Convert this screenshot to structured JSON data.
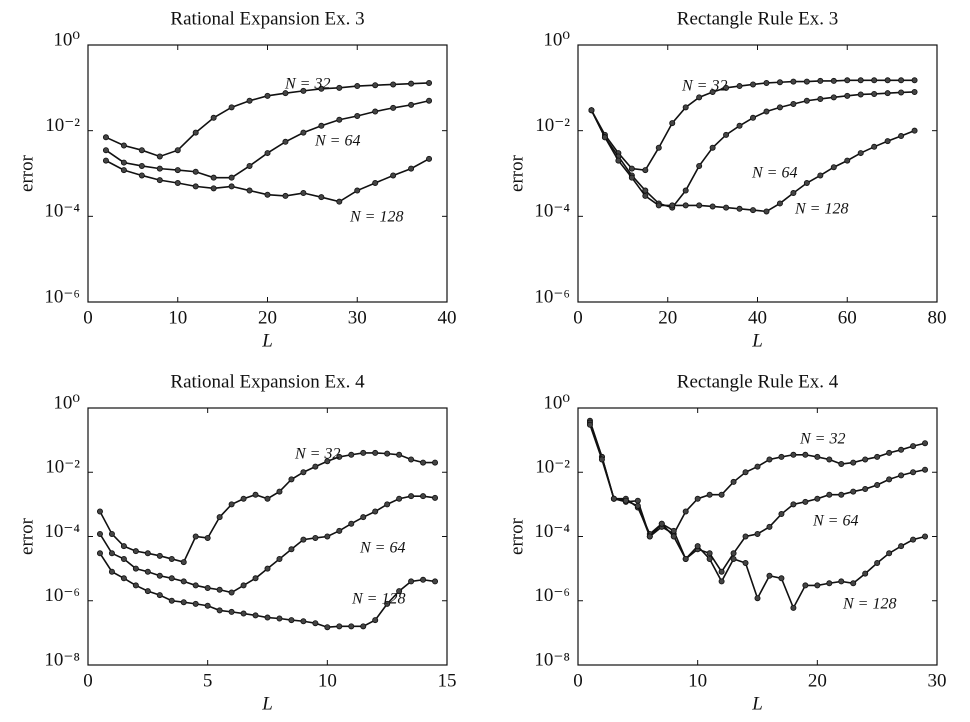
{
  "chart_data": [
    {
      "type": "line",
      "title": "Rational Expansion  Ex. 3",
      "xlabel": "L",
      "ylabel": "error",
      "yscale": "log",
      "xlim": [
        0,
        40
      ],
      "xticks": [
        0,
        10,
        20,
        30,
        40
      ],
      "ylim": [
        1e-06,
        1
      ],
      "yticks": [
        {
          "value": 1,
          "label": "10⁰"
        },
        {
          "value": 0.01,
          "label": "10⁻²"
        },
        {
          "value": 0.0001,
          "label": "10⁻⁴"
        },
        {
          "value": 1e-06,
          "label": "10⁻⁶"
        }
      ],
      "x": [
        2,
        4,
        6,
        8,
        10,
        12,
        14,
        16,
        18,
        20,
        22,
        24,
        26,
        28,
        30,
        32,
        34,
        36,
        38
      ],
      "series": [
        {
          "name": "N = 32",
          "color": "#111111",
          "values": [
            0.007,
            0.0045,
            0.0035,
            0.0025,
            0.0035,
            0.009,
            0.02,
            0.035,
            0.05,
            0.065,
            0.075,
            0.085,
            0.095,
            0.1,
            0.11,
            0.115,
            0.12,
            0.125,
            0.13
          ]
        },
        {
          "name": "N = 64",
          "color": "#111111",
          "values": [
            0.0035,
            0.0018,
            0.0015,
            0.0013,
            0.0012,
            0.0011,
            0.0008,
            0.0008,
            0.0015,
            0.003,
            0.0055,
            0.009,
            0.013,
            0.018,
            0.022,
            0.028,
            0.034,
            0.04,
            0.05
          ]
        },
        {
          "name": "N = 128",
          "color": "#111111",
          "values": [
            0.002,
            0.0012,
            0.0009,
            0.0007,
            0.0006,
            0.0005,
            0.00045,
            0.0005,
            0.0004,
            0.00032,
            0.0003,
            0.00035,
            0.00028,
            0.00022,
            0.0004,
            0.0006,
            0.0009,
            0.0013,
            0.0022
          ]
        }
      ]
    },
    {
      "type": "line",
      "title": "Rectangle Rule Ex. 3",
      "xlabel": "L",
      "ylabel": "error",
      "yscale": "log",
      "xlim": [
        0,
        80
      ],
      "xticks": [
        0,
        20,
        40,
        60,
        80
      ],
      "ylim": [
        1e-06,
        1
      ],
      "yticks": [
        {
          "value": 1,
          "label": "10⁰"
        },
        {
          "value": 0.01,
          "label": "10⁻²"
        },
        {
          "value": 0.0001,
          "label": "10⁻⁴"
        },
        {
          "value": 1e-06,
          "label": "10⁻⁶"
        }
      ],
      "x": [
        3,
        6,
        9,
        12,
        15,
        18,
        21,
        24,
        27,
        30,
        33,
        36,
        39,
        42,
        45,
        48,
        51,
        54,
        57,
        60,
        63,
        66,
        69,
        72,
        75
      ],
      "series": [
        {
          "name": "N = 32",
          "color": "#111111",
          "values": [
            0.03,
            0.008,
            0.003,
            0.0013,
            0.0012,
            0.004,
            0.015,
            0.035,
            0.06,
            0.08,
            0.1,
            0.11,
            0.12,
            0.13,
            0.135,
            0.14,
            0.14,
            0.145,
            0.145,
            0.15,
            0.15,
            0.15,
            0.15,
            0.15,
            0.15
          ]
        },
        {
          "name": "N = 64",
          "color": "#111111",
          "values": [
            0.03,
            0.007,
            0.0025,
            0.0009,
            0.0004,
            0.0002,
            0.00016,
            0.0004,
            0.0015,
            0.004,
            0.008,
            0.013,
            0.02,
            0.028,
            0.035,
            0.042,
            0.05,
            0.055,
            0.06,
            0.065,
            0.07,
            0.072,
            0.075,
            0.078,
            0.08
          ]
        },
        {
          "name": "N = 128",
          "color": "#111111",
          "values": [
            0.03,
            0.007,
            0.002,
            0.0008,
            0.0003,
            0.00018,
            0.00018,
            0.00018,
            0.00018,
            0.00017,
            0.00016,
            0.00015,
            0.00014,
            0.00013,
            0.0002,
            0.00035,
            0.0006,
            0.0009,
            0.0014,
            0.002,
            0.003,
            0.0042,
            0.0057,
            0.0075,
            0.01
          ]
        }
      ]
    },
    {
      "type": "line",
      "title": "Rational Expansion Ex. 4",
      "xlabel": "L",
      "ylabel": "error",
      "yscale": "log",
      "xlim": [
        0,
        15
      ],
      "xticks": [
        0,
        5,
        10,
        15
      ],
      "ylim": [
        1e-08,
        1
      ],
      "yticks": [
        {
          "value": 1,
          "label": "10⁰"
        },
        {
          "value": 0.01,
          "label": "10⁻²"
        },
        {
          "value": 0.0001,
          "label": "10⁻⁴"
        },
        {
          "value": 1e-06,
          "label": "10⁻⁶"
        },
        {
          "value": 1e-08,
          "label": "10⁻⁸"
        }
      ],
      "x": [
        0.5,
        1,
        1.5,
        2,
        2.5,
        3,
        3.5,
        4,
        4.5,
        5,
        5.5,
        6,
        6.5,
        7,
        7.5,
        8,
        8.5,
        9,
        9.5,
        10,
        10.5,
        11,
        11.5,
        12,
        12.5,
        13,
        13.5,
        14,
        14.5
      ],
      "series": [
        {
          "name": "N = 32",
          "color": "#111111",
          "values": [
            0.0006,
            0.00012,
            5e-05,
            3.5e-05,
            3e-05,
            2.5e-05,
            2e-05,
            1.6e-05,
            0.0001,
            9e-05,
            0.0004,
            0.001,
            0.0015,
            0.002,
            0.0015,
            0.0025,
            0.006,
            0.01,
            0.015,
            0.022,
            0.03,
            0.035,
            0.04,
            0.04,
            0.038,
            0.035,
            0.025,
            0.02,
            0.02
          ]
        },
        {
          "name": "N = 64",
          "color": "#111111",
          "values": [
            0.00012,
            3e-05,
            2e-05,
            1e-05,
            8e-06,
            6e-06,
            5e-06,
            4e-06,
            3e-06,
            2.5e-06,
            2.2e-06,
            1.8e-06,
            3e-06,
            5e-06,
            1e-05,
            2e-05,
            4e-05,
            8e-05,
            9e-05,
            0.0001,
            0.00015,
            0.00025,
            0.0004,
            0.0006,
            0.001,
            0.0015,
            0.0018,
            0.0018,
            0.0016
          ]
        },
        {
          "name": "N = 128",
          "color": "#111111",
          "values": [
            3e-05,
            8e-06,
            5e-06,
            3e-06,
            2e-06,
            1.5e-06,
            1e-06,
            9e-07,
            8e-07,
            7e-07,
            5e-07,
            4.5e-07,
            4e-07,
            3.5e-07,
            3e-07,
            2.8e-07,
            2.5e-07,
            2.3e-07,
            2e-07,
            1.5e-07,
            1.6e-07,
            1.6e-07,
            1.6e-07,
            2.5e-07,
            8e-07,
            2e-06,
            4e-06,
            4.5e-06,
            4e-06
          ]
        }
      ]
    },
    {
      "type": "line",
      "title": "Rectangle Rule Ex. 4",
      "xlabel": "L",
      "ylabel": "error",
      "yscale": "log",
      "xlim": [
        0,
        30
      ],
      "xticks": [
        0,
        10,
        20,
        30
      ],
      "ylim": [
        1e-08,
        1
      ],
      "yticks": [
        {
          "value": 1,
          "label": "10⁰"
        },
        {
          "value": 0.01,
          "label": "10⁻²"
        },
        {
          "value": 0.0001,
          "label": "10⁻⁴"
        },
        {
          "value": 1e-06,
          "label": "10⁻⁶"
        },
        {
          "value": 1e-08,
          "label": "10⁻⁸"
        }
      ],
      "x": [
        1,
        2,
        3,
        4,
        5,
        6,
        7,
        8,
        9,
        10,
        11,
        12,
        13,
        14,
        15,
        16,
        17,
        18,
        19,
        20,
        21,
        22,
        23,
        24,
        25,
        26,
        27,
        28,
        29
      ],
      "series": [
        {
          "name": "N = 32",
          "color": "#111111",
          "values": [
            0.4,
            0.03,
            0.0015,
            0.0012,
            0.0013,
            0.0001,
            0.0002,
            0.00012,
            0.0006,
            0.0015,
            0.002,
            0.002,
            0.005,
            0.01,
            0.015,
            0.025,
            0.03,
            0.035,
            0.035,
            0.03,
            0.025,
            0.018,
            0.02,
            0.025,
            0.03,
            0.04,
            0.05,
            0.065,
            0.08
          ]
        },
        {
          "name": "N = 64",
          "color": "#111111",
          "values": [
            0.35,
            0.03,
            0.0015,
            0.0015,
            0.0008,
            0.00012,
            0.00025,
            0.00015,
            2e-05,
            4e-05,
            3e-05,
            8e-06,
            3e-05,
            0.0001,
            0.00012,
            0.0002,
            0.0005,
            0.001,
            0.0012,
            0.0015,
            0.002,
            0.002,
            0.0025,
            0.003,
            0.004,
            0.006,
            0.008,
            0.01,
            0.012
          ]
        },
        {
          "name": "N = 128",
          "color": "#111111",
          "values": [
            0.3,
            0.025,
            0.0015,
            0.0013,
            0.0009,
            0.0001,
            0.00025,
            0.0001,
            2e-05,
            5e-05,
            2e-05,
            4e-06,
            2e-05,
            1.5e-05,
            1.2e-06,
            6e-06,
            5e-06,
            6e-07,
            3e-06,
            3e-06,
            3.5e-06,
            4e-06,
            3.5e-06,
            7e-06,
            1.5e-05,
            3e-05,
            5e-05,
            8e-05,
            0.0001
          ]
        }
      ]
    }
  ]
}
